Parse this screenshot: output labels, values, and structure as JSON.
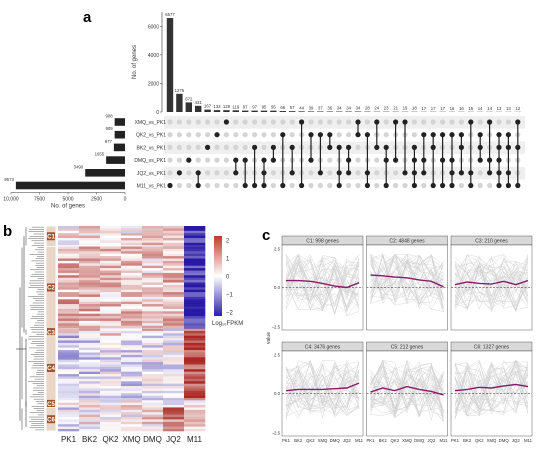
{
  "panel_labels": {
    "a": "a",
    "b": "b",
    "c": "c"
  },
  "chart_data": [
    {
      "type": "bar",
      "panel": "a",
      "ylabel": "No. of genes",
      "ylim": [
        0,
        7000
      ],
      "yticks": [
        "0",
        "2000",
        "4000",
        "6000"
      ],
      "intersection_values": [
        6577,
        1275,
        672,
        431,
        167,
        133,
        129,
        119,
        97,
        97,
        95,
        95,
        66,
        57,
        44,
        39,
        37,
        36,
        34,
        34,
        34,
        28,
        24,
        23,
        21,
        19,
        18,
        17,
        17,
        17,
        16,
        16,
        15,
        14,
        14,
        13,
        13,
        12
      ],
      "intersection_labels": [
        "6577",
        "1275",
        "672",
        "431",
        "167",
        "133",
        "129",
        "119",
        "97",
        "97",
        "95",
        "95",
        "66",
        "57",
        "44",
        "39",
        "37",
        "36",
        "34",
        "34",
        "34",
        "28",
        "24",
        "23",
        "21",
        "19",
        "18",
        "17",
        "17",
        "17",
        "16",
        "16",
        "15",
        "14",
        "14",
        "13",
        "13",
        "12"
      ],
      "sets": [
        "XMQ_vs_PK1",
        "QK2_vs_PK1",
        "BK2_vs_PK1",
        "DMQ_vs_PK1",
        "JQ2_vs_PK1",
        "M11_vs_PK1"
      ],
      "set_sizes": [
        908,
        909,
        977,
        1655,
        3490,
        9573
      ],
      "set_size_labels": [
        "908",
        "909",
        "977",
        "1655",
        "3490",
        "9573"
      ],
      "set_xlabel": "No. of genes",
      "set_xticks": [
        "10,000",
        "7500",
        "5000",
        "2500",
        "0"
      ]
    },
    {
      "type": "heatmap",
      "panel": "b",
      "columns": [
        "PK1",
        "BK2",
        "QK2",
        "XMQ",
        "DMQ",
        "JQ2",
        "M11"
      ],
      "clusters": [
        "C1",
        "C2",
        "C3",
        "C4",
        "C5",
        "C6"
      ],
      "legend_ticks": [
        "2",
        "1",
        "0",
        "−1",
        "−2"
      ],
      "legend_title": "Log₁₀FPKM",
      "color_low": "#2a1fa8",
      "color_mid": "#ffffff",
      "color_high": "#c0392b"
    },
    {
      "type": "line",
      "panel": "c",
      "x": [
        "PK1",
        "BK2",
        "QK2",
        "XMQ",
        "DMQ",
        "JQ2",
        "M11"
      ],
      "ylabel": "value",
      "yticks": [
        "2.5",
        "0.0",
        "−2.5"
      ],
      "ylim": [
        -2.5,
        2.5
      ],
      "facets": [
        {
          "title": "C1: 998 genes",
          "mean": [
            0.5,
            0.5,
            0.45,
            0.3,
            0.1,
            0.0,
            0.35
          ]
        },
        {
          "title": "C2: 4848 genes",
          "mean": [
            0.9,
            0.85,
            0.75,
            0.7,
            0.55,
            0.45,
            0.05
          ]
        },
        {
          "title": "C3: 210 genes",
          "mean": [
            0.2,
            0.4,
            0.3,
            0.25,
            0.45,
            0.2,
            0.5
          ]
        },
        {
          "title": "C4: 3476 genes",
          "mean": [
            0.2,
            0.3,
            0.3,
            0.3,
            0.35,
            0.4,
            0.75
          ]
        },
        {
          "title": "C5: 212 genes",
          "mean": [
            0.1,
            0.4,
            0.2,
            0.5,
            0.3,
            0.15,
            -0.1
          ]
        },
        {
          "title": "C6: 1327 genes",
          "mean": [
            0.2,
            0.3,
            0.45,
            0.4,
            0.55,
            0.65,
            0.5
          ]
        }
      ],
      "mean_color": "#8b1a6b",
      "bg_color": "#cfcfcf"
    }
  ]
}
